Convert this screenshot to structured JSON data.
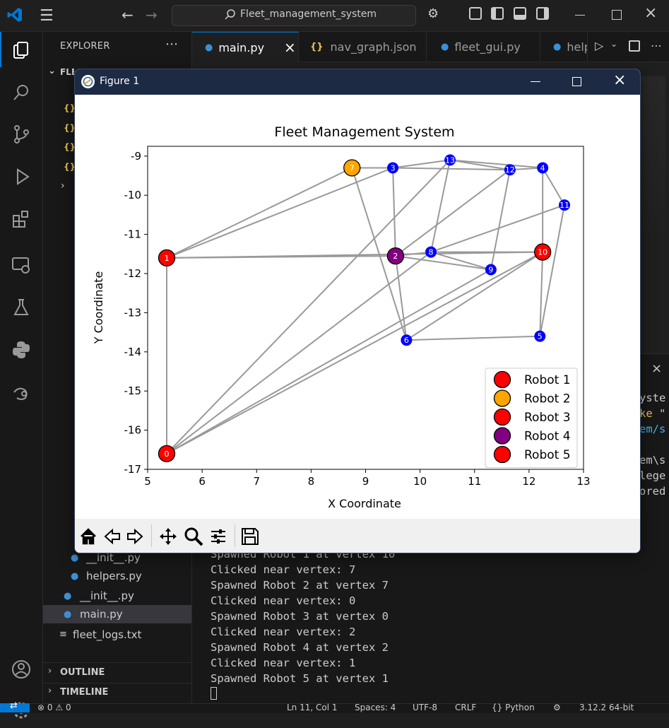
{
  "window": {
    "search_text": "Fleet_management_system"
  },
  "sidebar": {
    "title": "EXPLORER",
    "root": "FLEET_MANAGEMENT_SYSTEM",
    "files": [
      {
        "name": "__init__.py",
        "icon": "python-icon"
      },
      {
        "name": "helpers.py",
        "icon": "python-icon"
      },
      {
        "name": "__init__.py",
        "icon": "python-icon"
      },
      {
        "name": "main.py",
        "icon": "python-icon"
      },
      {
        "name": "fleet_logs.txt",
        "icon": "text-file-icon"
      }
    ],
    "outline": "OUTLINE",
    "timeline": "TIMELINE"
  },
  "tabs": [
    {
      "label": "main.py",
      "icon": "python-icon"
    },
    {
      "label": "nav_graph.json",
      "icon": "json-icon"
    },
    {
      "label": "fleet_gui.py",
      "icon": "python-icon"
    },
    {
      "label": "helpers.py",
      "icon": "python-icon"
    }
  ],
  "terminal": {
    "lines": [
      "Spawned Robot 1 at vertex 10",
      "Clicked near vertex: 7",
      "Spawned Robot 2 at vertex 7",
      "Clicked near vertex: 0",
      "Spawned Robot 3 at vertex 0",
      "Clicked near vertex: 2",
      "Spawned Robot 4 at vertex 2",
      "Clicked near vertex: 1",
      "Spawned Robot 5 at vertex 1"
    ],
    "right_snippets": [
      "yste",
      "ke \"",
      "em/s",
      "em\\s",
      "lege",
      "ored"
    ]
  },
  "statusbar": {
    "problems": "0",
    "warnings": "0",
    "position": "Ln 11, Col 1",
    "spaces": "Spaces: 4",
    "encoding": "UTF-8",
    "eol": "CRLF",
    "language": "Python",
    "interpreter": "3.12.2 64-bit"
  },
  "figure": {
    "window_title": "Figure 1"
  },
  "chart_data": {
    "type": "scatter",
    "title": "Fleet Management System",
    "xlabel": "X Coordinate",
    "ylabel": "Y Coordinate",
    "xlim": [
      5,
      13
    ],
    "ylim": [
      -17,
      -8.75
    ],
    "xticks": [
      5,
      6,
      7,
      8,
      9,
      10,
      11,
      12,
      13
    ],
    "yticks": [
      -9,
      -10,
      -11,
      -12,
      -13,
      -14,
      -15,
      -16,
      -17
    ],
    "vertices": [
      {
        "id": "0",
        "x": 5.35,
        "y": -16.6
      },
      {
        "id": "1",
        "x": 5.35,
        "y": -11.6
      },
      {
        "id": "2",
        "x": 9.55,
        "y": -11.55
      },
      {
        "id": "3",
        "x": 9.5,
        "y": -9.3
      },
      {
        "id": "4",
        "x": 12.25,
        "y": -9.3
      },
      {
        "id": "5",
        "x": 12.2,
        "y": -13.6
      },
      {
        "id": "6",
        "x": 9.75,
        "y": -13.7
      },
      {
        "id": "7",
        "x": 8.75,
        "y": -9.3
      },
      {
        "id": "8",
        "x": 10.2,
        "y": -11.45
      },
      {
        "id": "9",
        "x": 11.3,
        "y": -11.9
      },
      {
        "id": "10",
        "x": 12.25,
        "y": -11.45
      },
      {
        "id": "11",
        "x": 12.65,
        "y": -10.25
      },
      {
        "id": "12",
        "x": 11.65,
        "y": -9.35
      },
      {
        "id": "13",
        "x": 10.55,
        "y": -9.1
      }
    ],
    "edges": [
      [
        0,
        1
      ],
      [
        0,
        8
      ],
      [
        0,
        10
      ],
      [
        0,
        13
      ],
      [
        0,
        9
      ],
      [
        1,
        7
      ],
      [
        1,
        3
      ],
      [
        1,
        2
      ],
      [
        1,
        10
      ],
      [
        7,
        3
      ],
      [
        7,
        6
      ],
      [
        3,
        13
      ],
      [
        3,
        2
      ],
      [
        3,
        12
      ],
      [
        13,
        12
      ],
      [
        13,
        4
      ],
      [
        12,
        4
      ],
      [
        12,
        9
      ],
      [
        4,
        10
      ],
      [
        4,
        11
      ],
      [
        11,
        5
      ],
      [
        11,
        8
      ],
      [
        10,
        5
      ],
      [
        10,
        8
      ],
      [
        10,
        6
      ],
      [
        2,
        8
      ],
      [
        2,
        9
      ],
      [
        2,
        6
      ],
      [
        8,
        9
      ],
      [
        6,
        5
      ],
      [
        2,
        12
      ],
      [
        8,
        13
      ]
    ],
    "robots": [
      {
        "name": "Robot 1",
        "color": "#ff0000",
        "vertex": 10
      },
      {
        "name": "Robot 2",
        "color": "#ffa500",
        "vertex": 7
      },
      {
        "name": "Robot 3",
        "color": "#ff0000",
        "vertex": 0
      },
      {
        "name": "Robot 4",
        "color": "#800080",
        "vertex": 2
      },
      {
        "name": "Robot 5",
        "color": "#ff0000",
        "vertex": 1
      }
    ],
    "legend_position": "bottom-right",
    "vertex_color": "#0000ff",
    "edge_color": "#999999"
  }
}
